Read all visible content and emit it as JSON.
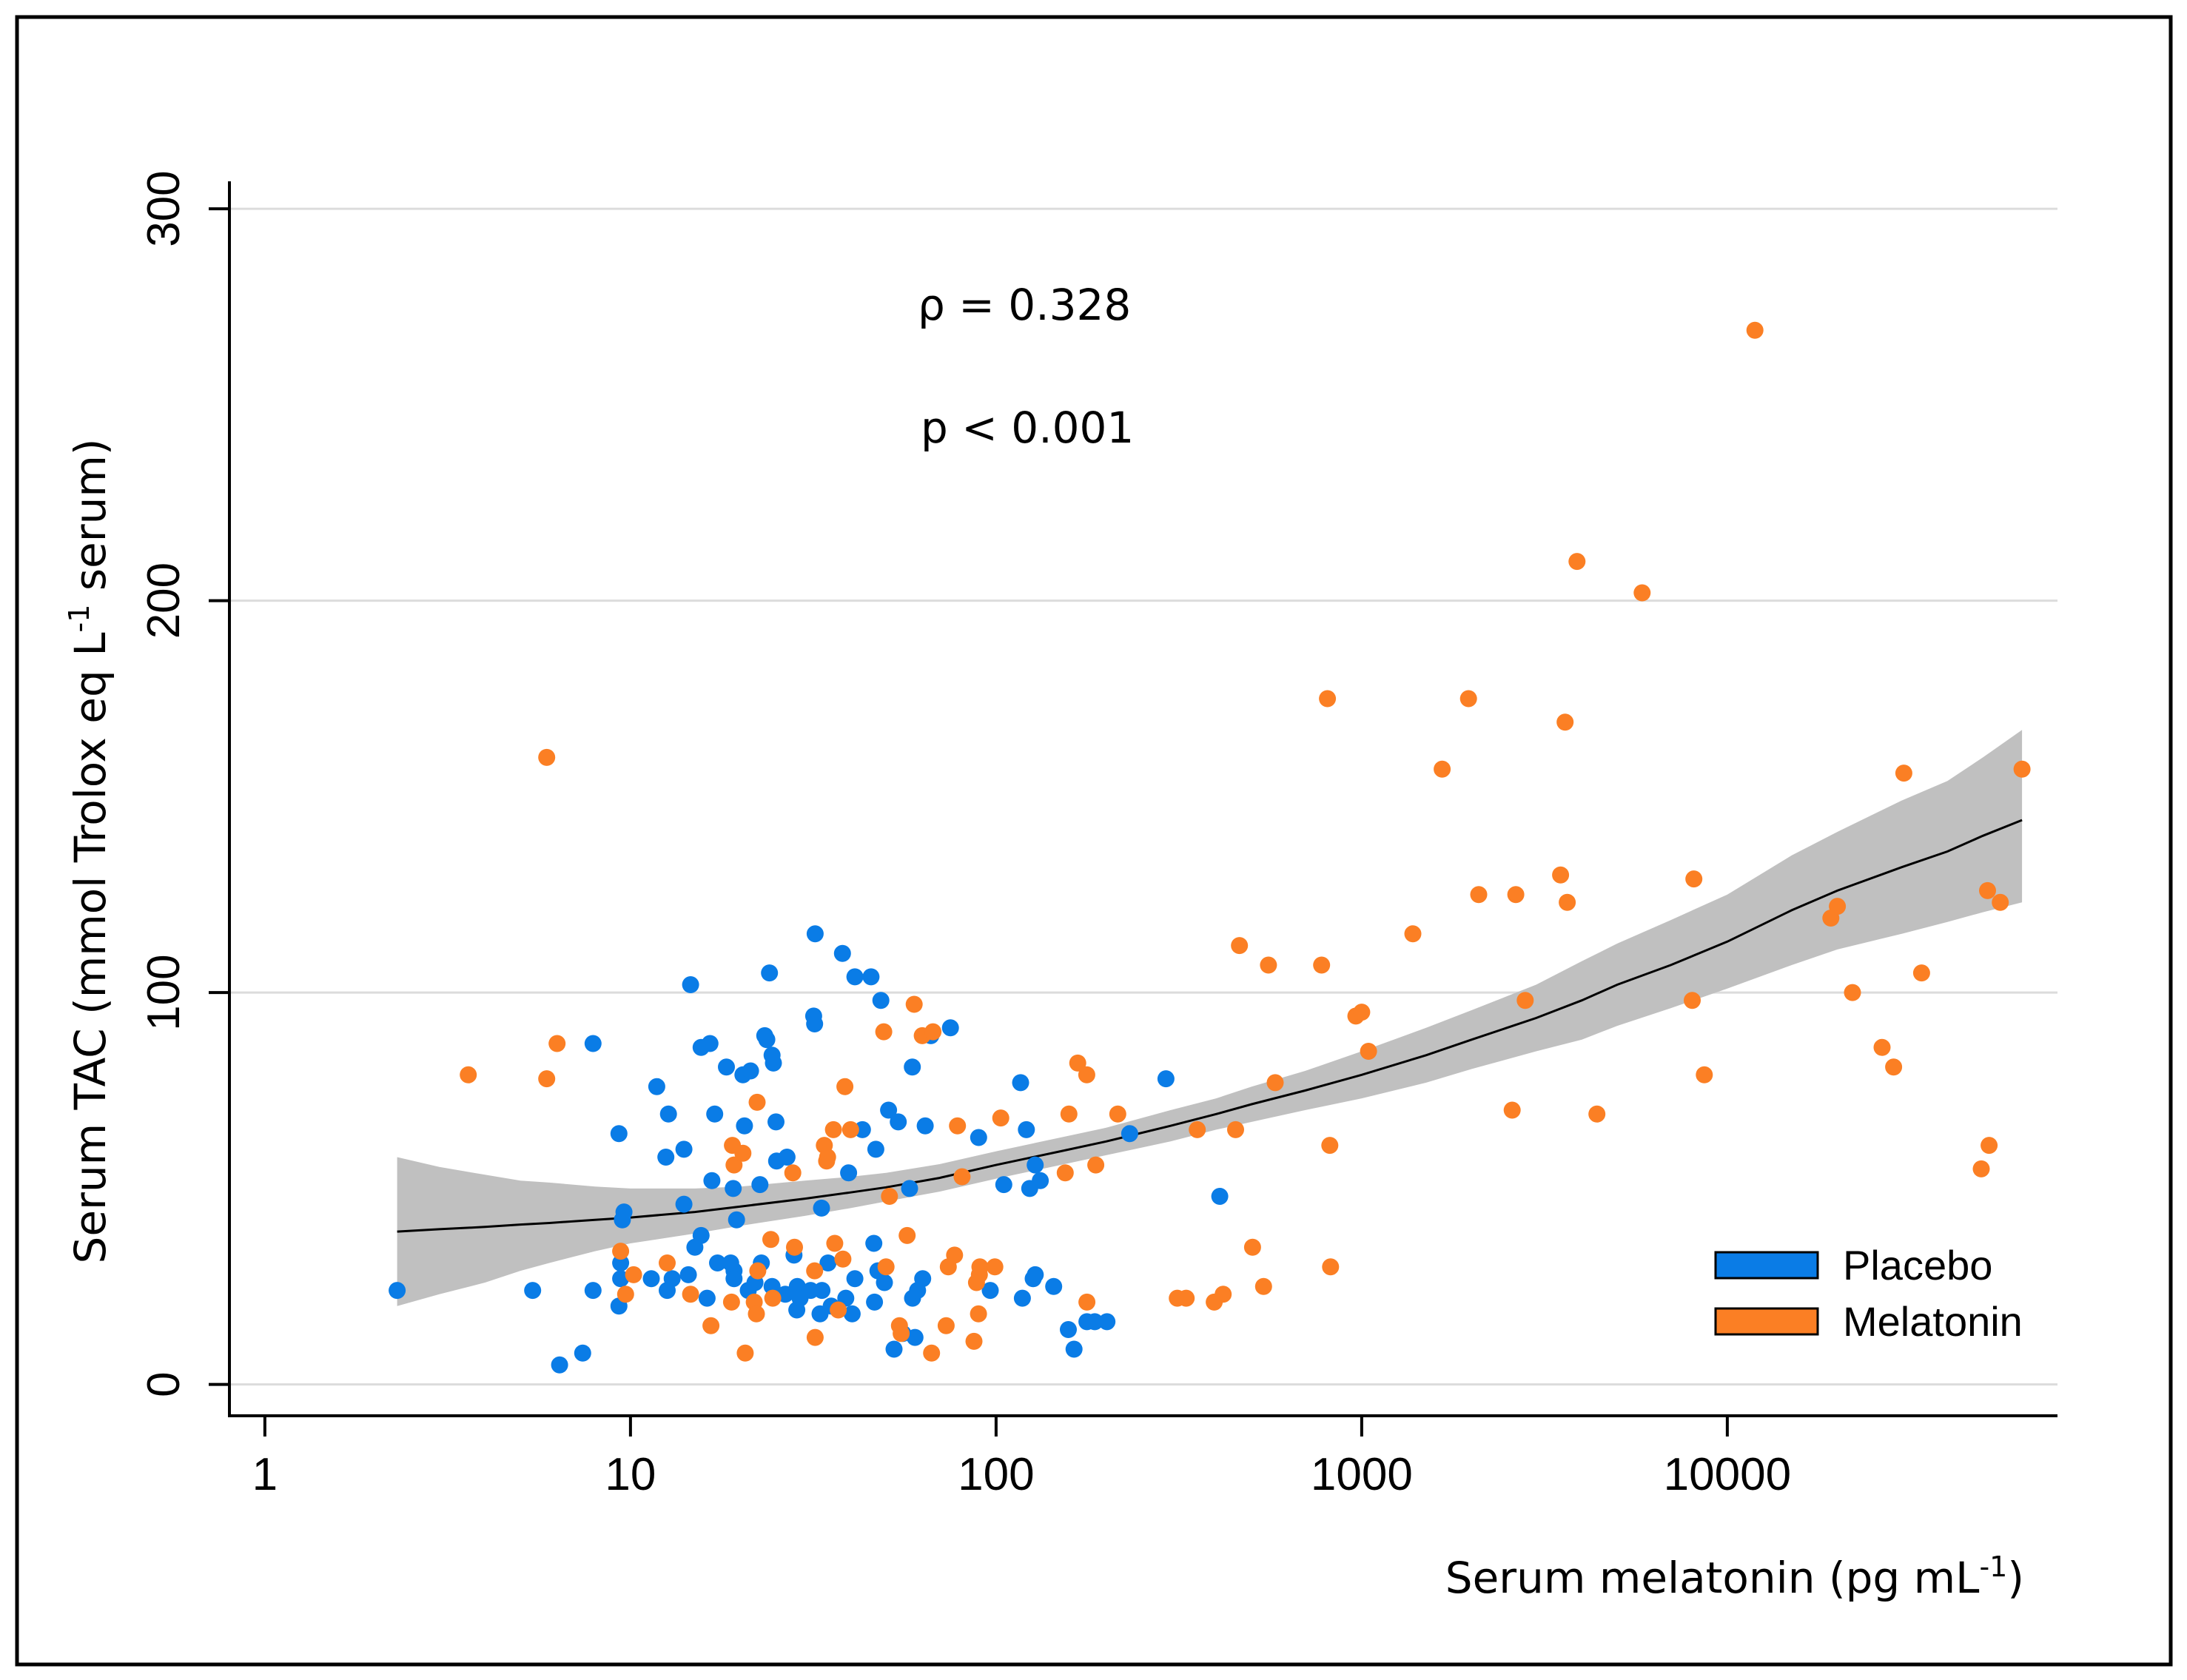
{
  "chart_data": {
    "type": "scatter",
    "title": "",
    "xlabel": "Serum melatonin (pg mL",
    "xlabel_sup": "-1",
    "xlabel_end": ")",
    "ylabel": "Serum TAC (mmol Trolox eq L",
    "ylabel_sup": "-1",
    "ylabel_end": " serum)",
    "xscale": "log",
    "xlim": [
      0.8,
      80000
    ],
    "ylim": [
      -8,
      307
    ],
    "xticks": [
      1,
      10,
      100,
      1000,
      10000
    ],
    "xtick_labels": [
      "1",
      "10",
      "100",
      "1000",
      "10000"
    ],
    "yticks": [
      0,
      100,
      200,
      300
    ],
    "ytick_labels": [
      "0",
      "100",
      "200",
      "300"
    ],
    "grid": "horizontal",
    "legend_position": "bottom-right",
    "annotations": [
      "ρ = 0.328",
      "p < 0.001"
    ],
    "colors": {
      "placebo": "#0a7ce6",
      "melatonin": "#fb7f24",
      "band": "#c0c0c0",
      "fit": "#000000",
      "grid": "#dcdcdc"
    },
    "series": [
      {
        "name": "Placebo",
        "color": "#0a7ce6",
        "points": [
          [
            2.3,
            24
          ],
          [
            5.4,
            24
          ],
          [
            6.4,
            5
          ],
          [
            7.4,
            8
          ],
          [
            7.9,
            87
          ],
          [
            9.3,
            64
          ],
          [
            9.5,
            42
          ],
          [
            9.6,
            44
          ],
          [
            9.4,
            31
          ],
          [
            9.4,
            27
          ],
          [
            9.3,
            20
          ],
          [
            7.9,
            24
          ],
          [
            11.4,
            27
          ],
          [
            11.8,
            76
          ],
          [
            12.5,
            58
          ],
          [
            12.7,
            69
          ],
          [
            12.6,
            24
          ],
          [
            13,
            27
          ],
          [
            14,
            46
          ],
          [
            14,
            60
          ],
          [
            14.4,
            28
          ],
          [
            14.6,
            102
          ],
          [
            15,
            35
          ],
          [
            15.6,
            38
          ],
          [
            15.6,
            86
          ],
          [
            16.2,
            22
          ],
          [
            16.5,
            87
          ],
          [
            16.7,
            52
          ],
          [
            17,
            69
          ],
          [
            17.3,
            31
          ],
          [
            18.3,
            81
          ],
          [
            18.8,
            31
          ],
          [
            19.1,
            50
          ],
          [
            19.2,
            29
          ],
          [
            19.2,
            27
          ],
          [
            19.5,
            42
          ],
          [
            20.3,
            79
          ],
          [
            20.5,
            66
          ],
          [
            21,
            24
          ],
          [
            21.3,
            80
          ],
          [
            21.9,
            26
          ],
          [
            22.6,
            51
          ],
          [
            22.8,
            31
          ],
          [
            23.3,
            89
          ],
          [
            23.6,
            88
          ],
          [
            24,
            105
          ],
          [
            24.4,
            25
          ],
          [
            24.4,
            84
          ],
          [
            24.6,
            82
          ],
          [
            25,
            67
          ],
          [
            25.1,
            57
          ],
          [
            26.5,
            23
          ],
          [
            26.8,
            58
          ],
          [
            28,
            33
          ],
          [
            28.5,
            19
          ],
          [
            28.6,
            25
          ],
          [
            29.1,
            22
          ],
          [
            31.1,
            24
          ],
          [
            31.7,
            94
          ],
          [
            31.9,
            92
          ],
          [
            32,
            115
          ],
          [
            33,
            18
          ],
          [
            33.3,
            45
          ],
          [
            33.4,
            24
          ],
          [
            34.7,
            31
          ],
          [
            35.4,
            20
          ],
          [
            38,
            110
          ],
          [
            38.8,
            22
          ],
          [
            39.5,
            54
          ],
          [
            40.4,
            18
          ],
          [
            41.1,
            27
          ],
          [
            41.1,
            104
          ],
          [
            43.1,
            65
          ],
          [
            45.5,
            104
          ],
          [
            46.3,
            36
          ],
          [
            46.5,
            21
          ],
          [
            46.9,
            60
          ],
          [
            47.5,
            29
          ],
          [
            48.4,
            98
          ],
          [
            49.5,
            26
          ],
          [
            50.8,
            70
          ],
          [
            52.6,
            9
          ],
          [
            54,
            67
          ],
          [
            55.6,
            13
          ],
          [
            58,
            50
          ],
          [
            59,
            81
          ],
          [
            59.1,
            22
          ],
          [
            60,
            12
          ],
          [
            61,
            24
          ],
          [
            63,
            27
          ],
          [
            64,
            66
          ],
          [
            66.3,
            89
          ],
          [
            75,
            91
          ],
          [
            89.6,
            63
          ],
          [
            96.4,
            24
          ],
          [
            105,
            51
          ],
          [
            116.7,
            77
          ],
          [
            118,
            22
          ],
          [
            121,
            65
          ],
          [
            123.6,
            50
          ],
          [
            126.3,
            27
          ],
          [
            127.9,
            56
          ],
          [
            128,
            28
          ],
          [
            132.1,
            52
          ],
          [
            143.7,
            25
          ],
          [
            157.6,
            14
          ],
          [
            163.4,
            9
          ],
          [
            177.2,
            16
          ],
          [
            186.2,
            16
          ],
          [
            201,
            16
          ],
          [
            232,
            64
          ],
          [
            291.5,
            78
          ],
          [
            409,
            48
          ]
        ]
      },
      {
        "name": "Melatonin",
        "color": "#fb7f24",
        "points": [
          [
            3.6,
            79
          ],
          [
            5.9,
            78
          ],
          [
            5.9,
            160
          ],
          [
            6.3,
            87
          ],
          [
            9.4,
            34
          ],
          [
            9.7,
            23
          ],
          [
            10.2,
            28
          ],
          [
            12.6,
            31
          ],
          [
            14.6,
            23
          ],
          [
            16.6,
            15
          ],
          [
            18.9,
            21
          ],
          [
            19,
            61
          ],
          [
            19.2,
            56
          ],
          [
            20.3,
            59
          ],
          [
            20.6,
            8
          ],
          [
            21.8,
            21
          ],
          [
            22.1,
            18
          ],
          [
            22.2,
            72
          ],
          [
            22.3,
            29
          ],
          [
            24.2,
            37
          ],
          [
            24.5,
            22
          ],
          [
            27.8,
            54
          ],
          [
            28.1,
            35
          ],
          [
            31.9,
            29
          ],
          [
            32,
            12
          ],
          [
            33.9,
            61
          ],
          [
            34.4,
            57
          ],
          [
            34.6,
            58
          ],
          [
            35.9,
            65
          ],
          [
            36.2,
            36
          ],
          [
            37,
            19
          ],
          [
            38.1,
            32
          ],
          [
            38.6,
            76
          ],
          [
            40,
            65
          ],
          [
            49.3,
            90
          ],
          [
            50,
            30
          ],
          [
            51.1,
            48
          ],
          [
            54.4,
            15
          ],
          [
            55,
            13
          ],
          [
            57.1,
            38
          ],
          [
            59.7,
            97
          ],
          [
            62.8,
            89
          ],
          [
            66.6,
            8
          ],
          [
            67.2,
            90
          ],
          [
            73,
            15
          ],
          [
            74,
            30
          ],
          [
            77,
            33
          ],
          [
            78.4,
            66
          ],
          [
            80.7,
            53
          ],
          [
            87,
            11
          ],
          [
            88.4,
            26
          ],
          [
            89.5,
            18
          ],
          [
            90,
            28
          ],
          [
            90.3,
            30
          ],
          [
            99.2,
            30
          ],
          [
            103,
            68
          ],
          [
            154.6,
            54
          ],
          [
            158.2,
            69
          ],
          [
            167.2,
            82
          ],
          [
            177,
            79
          ],
          [
            177.2,
            21
          ],
          [
            187.4,
            56
          ],
          [
            215.2,
            69
          ],
          [
            313,
            22
          ],
          [
            331,
            22
          ],
          [
            355,
            65
          ],
          [
            395,
            21
          ],
          [
            418,
            23
          ],
          [
            452,
            65
          ],
          [
            463,
            112
          ],
          [
            503,
            35
          ],
          [
            539,
            25
          ],
          [
            556,
            107
          ],
          [
            580,
            77
          ],
          [
            777,
            107
          ],
          [
            806,
            175
          ],
          [
            818,
            61
          ],
          [
            822,
            30
          ],
          [
            964,
            94
          ],
          [
            1000,
            95
          ],
          [
            1044,
            85
          ],
          [
            1380,
            115
          ],
          [
            1660,
            157
          ],
          [
            1960,
            175
          ],
          [
            2090,
            125
          ],
          [
            2580,
            70
          ],
          [
            2640,
            125
          ],
          [
            2800,
            98
          ],
          [
            3500,
            130
          ],
          [
            3600,
            169
          ],
          [
            3650,
            123
          ],
          [
            3880,
            210
          ],
          [
            4400,
            69
          ],
          [
            5850,
            202
          ],
          [
            8020,
            98
          ],
          [
            8100,
            129
          ],
          [
            8650,
            79
          ],
          [
            11900,
            269
          ],
          [
            19200,
            119
          ],
          [
            20000,
            122
          ],
          [
            22000,
            100
          ],
          [
            26500,
            86
          ],
          [
            28500,
            81
          ],
          [
            30400,
            156
          ],
          [
            34000,
            105
          ],
          [
            49500,
            55
          ],
          [
            51500,
            126
          ],
          [
            52000,
            61
          ],
          [
            55800,
            123
          ],
          [
            64000,
            157
          ]
        ]
      }
    ],
    "fit_curve": {
      "x": [
        2.3,
        3,
        4,
        5,
        6,
        8,
        10,
        15,
        20,
        30,
        40,
        50,
        70,
        100,
        150,
        200,
        300,
        400,
        500,
        700,
        1000,
        1500,
        2000,
        3000,
        4000,
        5000,
        7000,
        10000,
        15000,
        20000,
        30000,
        40000,
        50000,
        64000
      ],
      "y": [
        39,
        39.6,
        40.2,
        40.8,
        41.2,
        42,
        42.6,
        44,
        45.4,
        47.4,
        49,
        50.3,
        52.7,
        56,
        59.5,
        62,
        66,
        69,
        71.5,
        75,
        79,
        84,
        88,
        93.5,
        98,
        102,
        107,
        113,
        121,
        126,
        132,
        136,
        140,
        144
      ],
      "lower": [
        20,
        23,
        26,
        29,
        31,
        34,
        36,
        38.5,
        40.5,
        43,
        45,
        46.7,
        49.2,
        52.5,
        56,
        58.5,
        62,
        65,
        67,
        70,
        73,
        77,
        80.5,
        85,
        88,
        91.5,
        96,
        101,
        107,
        111,
        115,
        118,
        120.5,
        123
      ],
      "upper": [
        58,
        55.5,
        53.5,
        52,
        51.5,
        50.5,
        50,
        50,
        50.5,
        52,
        53,
        54,
        56.2,
        59.5,
        63,
        65.5,
        70,
        73,
        76,
        80,
        85,
        91,
        95.5,
        102,
        108,
        112.5,
        118.5,
        125,
        135,
        141,
        149,
        154,
        160,
        167
      ]
    },
    "legend": [
      {
        "label": "Placebo",
        "color": "#0a7ce6"
      },
      {
        "label": "Melatonin",
        "color": "#fb7f24"
      }
    ]
  }
}
